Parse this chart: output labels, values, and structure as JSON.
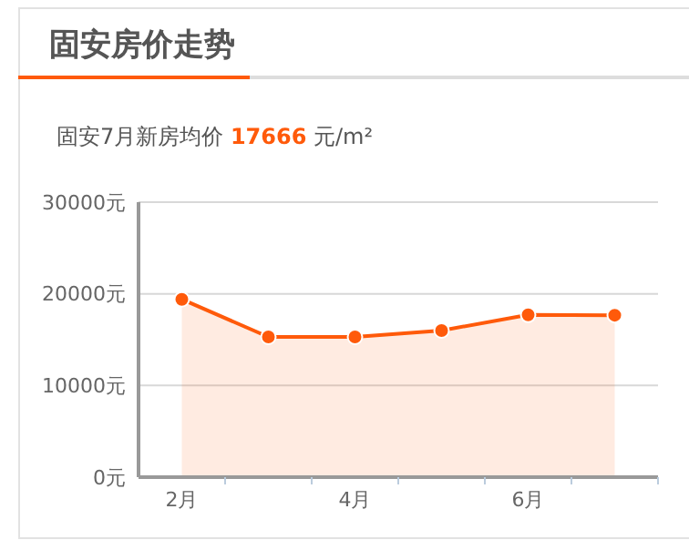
{
  "chart_data": {
    "type": "area",
    "title": "固安房价走势",
    "subtitle": "固安7月新房均价 17666 元/m²",
    "categories": [
      "2月",
      null,
      "4月",
      null,
      "6月",
      null
    ],
    "series": [
      {
        "color": "#ff5a0a",
        "values": [
          19400,
          15300,
          15300,
          16000,
          17700,
          17666
        ]
      }
    ],
    "ylim": [
      0,
      30000
    ],
    "yticks": [
      {
        "value": 0,
        "label": "0元"
      },
      {
        "value": 10000,
        "label": "10000元"
      },
      {
        "value": 20000,
        "label": "20000元"
      },
      {
        "value": 30000,
        "label": "30000元"
      }
    ],
    "grid": "y",
    "marker": "circle"
  }
}
